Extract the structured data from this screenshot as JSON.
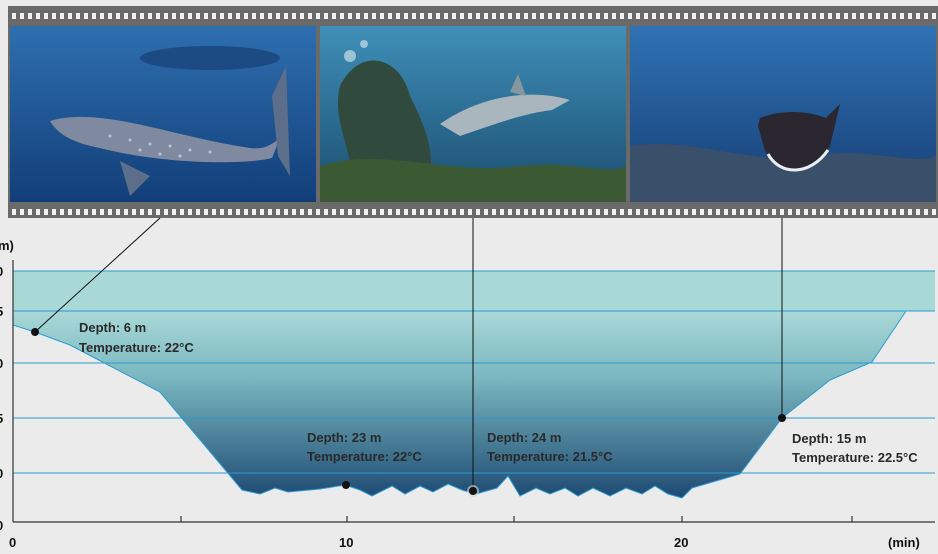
{
  "photos": [
    {
      "name": "whale-shark-photo",
      "subject": "whale shark"
    },
    {
      "name": "reef-shark-photo",
      "subject": "reef shark"
    },
    {
      "name": "manta-ray-photo",
      "subject": "manta ray"
    }
  ],
  "profile": {
    "x_axis": {
      "unit": "(min)",
      "ticks": [
        "0",
        "10",
        "20"
      ]
    },
    "y_axis": {
      "unit": "m)",
      "tick_fragments": [
        "0",
        "5",
        "0",
        "5",
        "0",
        "0"
      ]
    },
    "callouts": [
      {
        "depth": "Depth: 6 m",
        "temperature": "Temperature: 22°C"
      },
      {
        "depth": "Depth: 23 m",
        "temperature": "Temperature: 22°C"
      },
      {
        "depth": "Depth: 24 m",
        "temperature": "Temperature: 21.5°C"
      },
      {
        "depth": "Depth: 15 m",
        "temperature": "Temperature: 22.5°C"
      }
    ]
  },
  "colors": {
    "water_top": "#a9d9d7",
    "water_bottom": "#1d4a72",
    "grid_line": "#2a9ad6",
    "film": "#6a6a6a"
  }
}
